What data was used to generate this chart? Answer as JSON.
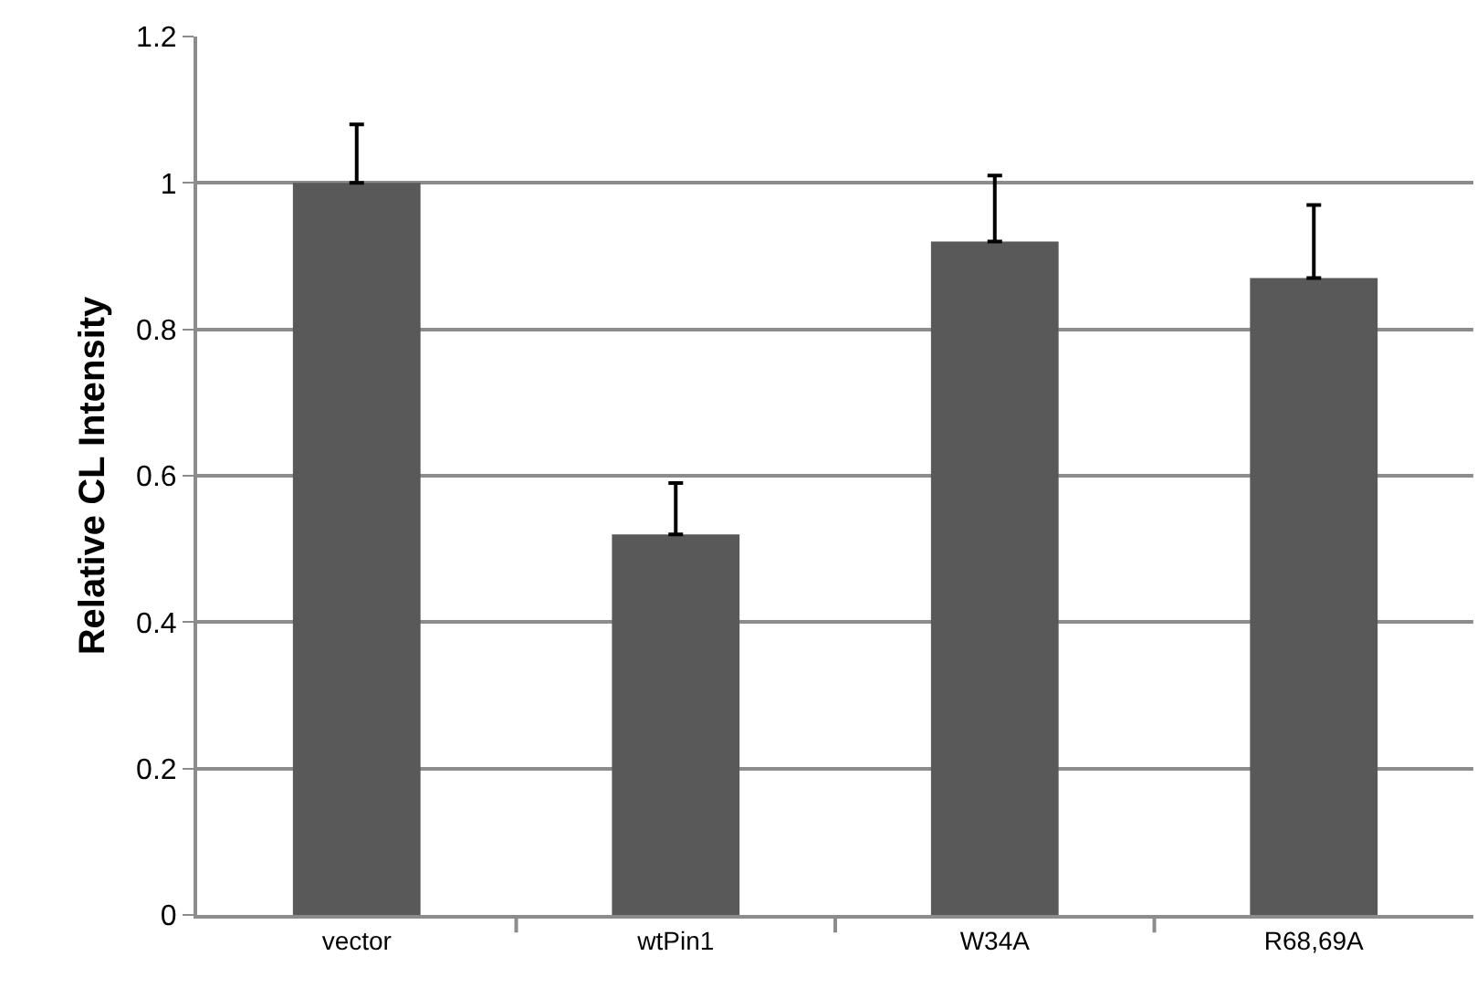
{
  "chart_data": {
    "type": "bar",
    "ylabel": "Relative CL Intensity",
    "categories": [
      "vector",
      "wtPin1",
      "W34A",
      "R68,69A"
    ],
    "values": [
      1.0,
      0.52,
      0.92,
      0.87
    ],
    "errors": [
      [
        1.0,
        1.08
      ],
      [
        0.52,
        0.59
      ],
      [
        0.92,
        1.01
      ],
      [
        0.87,
        0.97
      ]
    ],
    "color": "#595959",
    "ylim": [
      0,
      1.2
    ],
    "yticks": [
      0,
      0.2,
      0.4,
      0.6,
      0.8,
      1,
      1.2
    ],
    "grid": "y",
    "legend": false
  }
}
